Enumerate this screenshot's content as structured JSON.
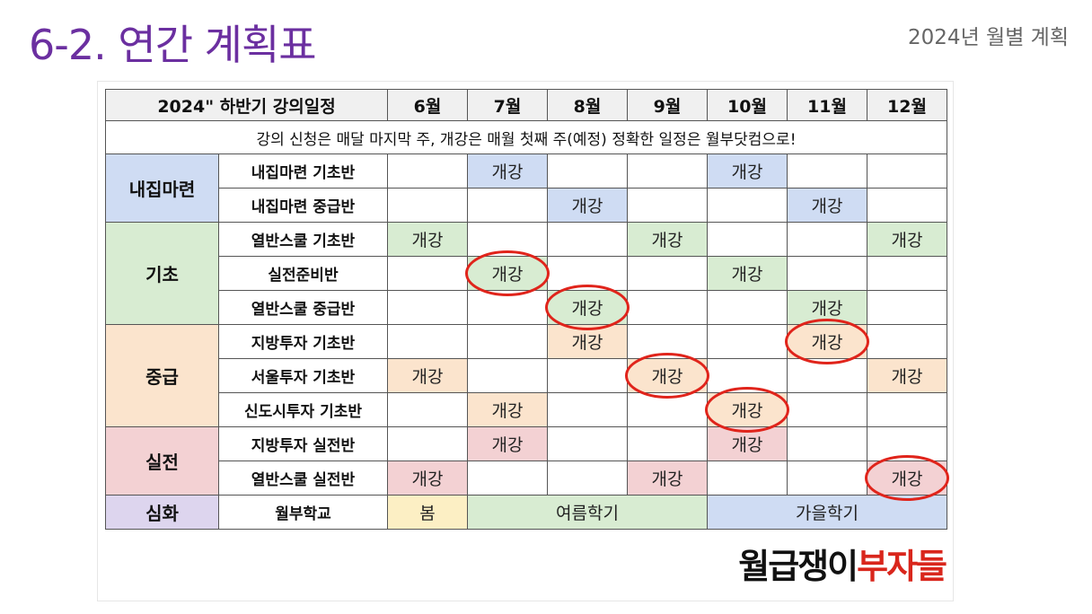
{
  "page": {
    "title": "6-2. 연간 계획표",
    "subtitle": "2024년 월별 계획"
  },
  "table": {
    "header": {
      "label": "2024\" 하반기 강의일정",
      "months": [
        "6월",
        "7월",
        "8월",
        "9월",
        "10월",
        "11월",
        "12월"
      ]
    },
    "notice": "강의 신청은 매달 마지막 주, 개강은 매월 첫째 주(예정) 정확한 일정은 월부닷컴으로!",
    "colors": {
      "blue": "#cfdcf3",
      "green": "#d8ecd2",
      "orange": "#fbe4cd",
      "pink": "#f3d1d3",
      "purple": "#ddd5ee",
      "spring": "#fcefc4",
      "summer": "#d8ecd2",
      "autumn": "#cfdcf3",
      "circle": "#e0241b"
    },
    "categories": [
      {
        "name": "내집마련",
        "color": "blue",
        "courses": [
          {
            "name": "내집마련 기초반",
            "cells": [
              "",
              "개강",
              "",
              "",
              "개강",
              "",
              ""
            ],
            "circled": []
          },
          {
            "name": "내집마련 중급반",
            "cells": [
              "",
              "",
              "개강",
              "",
              "",
              "개강",
              ""
            ],
            "circled": []
          }
        ]
      },
      {
        "name": "기초",
        "color": "green",
        "courses": [
          {
            "name": "열반스쿨 기초반",
            "cells": [
              "개강",
              "",
              "",
              "개강",
              "",
              "",
              "개강"
            ],
            "circled": []
          },
          {
            "name": "실전준비반",
            "cells": [
              "",
              "개강",
              "",
              "",
              "개강",
              "",
              ""
            ],
            "circled": [
              1
            ]
          },
          {
            "name": "열반스쿨 중급반",
            "cells": [
              "",
              "",
              "개강",
              "",
              "",
              "개강",
              ""
            ],
            "circled": [
              2
            ]
          }
        ]
      },
      {
        "name": "중급",
        "color": "orange",
        "courses": [
          {
            "name": "지방투자 기초반",
            "cells": [
              "",
              "",
              "개강",
              "",
              "",
              "개강",
              ""
            ],
            "circled": [
              5
            ]
          },
          {
            "name": "서울투자 기초반",
            "cells": [
              "개강",
              "",
              "",
              "개강",
              "",
              "",
              "개강"
            ],
            "circled": [
              3
            ]
          },
          {
            "name": "신도시투자 기초반",
            "cells": [
              "",
              "개강",
              "",
              "",
              "개강",
              "",
              ""
            ],
            "circled": [
              4
            ]
          }
        ]
      },
      {
        "name": "실전",
        "color": "pink",
        "courses": [
          {
            "name": "지방투자 실전반",
            "cells": [
              "",
              "개강",
              "",
              "",
              "개강",
              "",
              ""
            ],
            "circled": []
          },
          {
            "name": "열반스쿨 실전반",
            "cells": [
              "개강",
              "",
              "",
              "개강",
              "",
              "",
              "개강"
            ],
            "circled": [
              6
            ]
          }
        ]
      }
    ],
    "advanced": {
      "category": "심화",
      "course": "월부학교",
      "seasons": [
        {
          "label": "봄",
          "span": 1,
          "color": "spring"
        },
        {
          "label": "여름학기",
          "span": 3,
          "color": "summer"
        },
        {
          "label": "가을학기",
          "span": 3,
          "color": "autumn"
        }
      ]
    }
  },
  "brand": {
    "part1": "월급쟁이",
    "part2": "부자들"
  }
}
